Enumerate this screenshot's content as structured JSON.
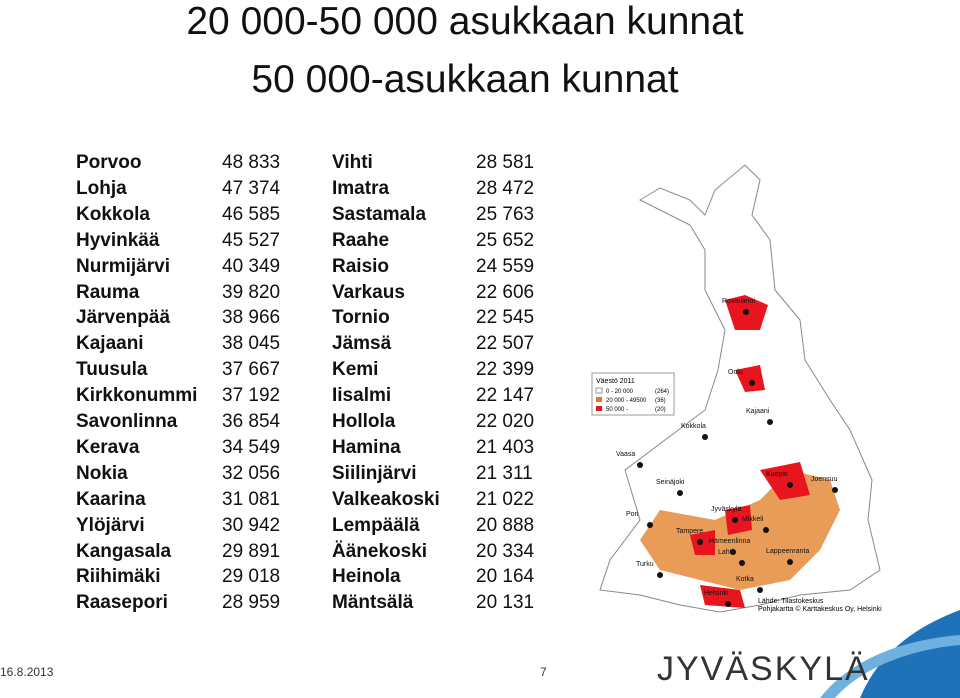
{
  "title": [
    "20 000-50 000 asukkaan kunnat",
    "50 000-asukkaan kunnat"
  ],
  "table": {
    "left": [
      [
        "Porvoo",
        "48 833"
      ],
      [
        "Lohja",
        "47 374"
      ],
      [
        "Kokkola",
        "46 585"
      ],
      [
        "Hyvinkää",
        "45 527"
      ],
      [
        "Nurmijärvi",
        "40 349"
      ],
      [
        "Rauma",
        "39 820"
      ],
      [
        "Järvenpää",
        "38 966"
      ],
      [
        "Kajaani",
        "38 045"
      ],
      [
        "Tuusula",
        "37 667"
      ],
      [
        "Kirkkonummi",
        "37 192"
      ],
      [
        "Savonlinna",
        "36 854"
      ],
      [
        "Kerava",
        "34 549"
      ],
      [
        "Nokia",
        "32 056"
      ],
      [
        "Kaarina",
        "31 081"
      ],
      [
        "Ylöjärvi",
        "30 942"
      ],
      [
        "Kangasala",
        "29 891"
      ],
      [
        "Riihimäki",
        "29 018"
      ],
      [
        "Raasepori",
        "28 959"
      ]
    ],
    "right": [
      [
        "Vihti",
        "28 581"
      ],
      [
        "Imatra",
        "28 472"
      ],
      [
        "Sastamala",
        "25 763"
      ],
      [
        "Raahe",
        "25 652"
      ],
      [
        "Raisio",
        "24 559"
      ],
      [
        "Varkaus",
        "22 606"
      ],
      [
        "Tornio",
        "22 545"
      ],
      [
        "Jämsä",
        "22 507"
      ],
      [
        "Kemi",
        "22 399"
      ],
      [
        "Iisalmi",
        "22 147"
      ],
      [
        "Hollola",
        "22 020"
      ],
      [
        "Hamina",
        "21 403"
      ],
      [
        "Siilinjärvi",
        "21 311"
      ],
      [
        "Valkeakoski",
        "21 022"
      ],
      [
        "Lempäälä",
        "20 888"
      ],
      [
        "Äänekoski",
        "20 334"
      ],
      [
        "Heinola",
        "20 164"
      ],
      [
        "Mäntsälä",
        "20 131"
      ]
    ]
  },
  "map": {
    "legend": {
      "title": "Väestö 2011",
      "items": [
        [
          "0 - 20 000",
          "(264)"
        ],
        [
          "20 000 - 49500",
          "(36)"
        ],
        [
          "50 000 -",
          "(20)"
        ]
      ]
    },
    "cities": [
      "Rovaniemi",
      "Oulu",
      "Kajaani",
      "Kokkola",
      "Vaasa",
      "Seinäjoki",
      "Kuopio",
      "Joensuu",
      "Jyväskylä",
      "Mikkeli",
      "Pori",
      "Tampere",
      "Hämeenlinna",
      "Lahti",
      "Lappeenranta",
      "Turku",
      "Kotka",
      "Helsinki"
    ],
    "source": [
      "Lähde: Tilastokeskus",
      "Pohjakartta © Karttakeskus Oy, Helsinki"
    ]
  },
  "footer": {
    "date": "16.8.2013",
    "page": "7",
    "logo": "JYVÄSKYLÄ"
  }
}
